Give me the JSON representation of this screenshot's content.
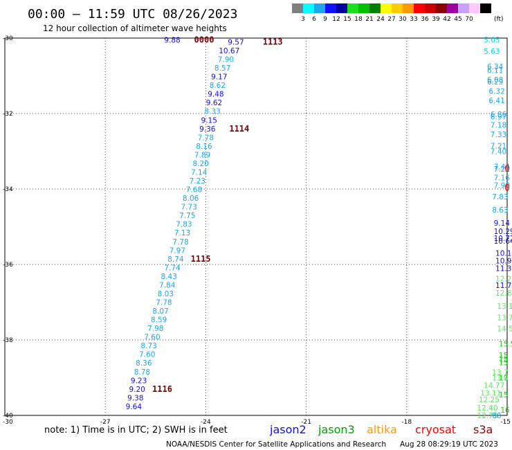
{
  "header": {
    "title": "00:00 — 11:59 UTC 08/26/2023",
    "subtitle": "12 hour collection of altimeter wave heights"
  },
  "colorbar": {
    "colors": [
      "#808080",
      "#00ffff",
      "#1aa7ee",
      "#1010ff",
      "#0000a0",
      "#19e119",
      "#00c000",
      "#008000",
      "#ffff00",
      "#ffcc00",
      "#ff9900",
      "#ff0000",
      "#c80000",
      "#8c0000",
      "#a000a0",
      "#c8a0ff",
      "#ffc8ff",
      "#000000"
    ],
    "labels": [
      "3",
      "6",
      "9",
      "12",
      "15",
      "18",
      "21",
      "24",
      "27",
      "30",
      "33",
      "36",
      "39",
      "42",
      "45",
      "70"
    ],
    "unit": "(ft)"
  },
  "chart_data": {
    "type": "scatter",
    "title": "00:00 — 11:59 UTC 08/26/2023",
    "subtitle": "12 hour collection of altimeter wave heights",
    "xlim": [
      -30,
      -15
    ],
    "ylim": [
      -40,
      -30
    ],
    "xticks": [
      "-27",
      "-24",
      "-21",
      "-18",
      "-15"
    ],
    "yticks": [
      "-30",
      "-32",
      "-34",
      "-36",
      "-38",
      "-40"
    ],
    "x_corner_label": "-30",
    "grid": true,
    "units": "ft",
    "track_west": [
      {
        "lon": -25.0,
        "lat": -30.05,
        "v": "9.88"
      },
      {
        "lon": -23.1,
        "lat": -30.1,
        "v": "9.57"
      },
      {
        "lon": -23.3,
        "lat": -30.33,
        "v": "10.67"
      },
      {
        "lon": -23.4,
        "lat": -30.56,
        "v": "7.90"
      },
      {
        "lon": -23.5,
        "lat": -30.79,
        "v": "8.57"
      },
      {
        "lon": -23.6,
        "lat": -31.02,
        "v": "9.17"
      },
      {
        "lon": -23.65,
        "lat": -31.25,
        "v": "8.62"
      },
      {
        "lon": -23.7,
        "lat": -31.48,
        "v": "9.48"
      },
      {
        "lon": -23.75,
        "lat": -31.71,
        "v": "9.62"
      },
      {
        "lon": -23.8,
        "lat": -31.94,
        "v": "8.33"
      },
      {
        "lon": -23.9,
        "lat": -32.17,
        "v": "9.15"
      },
      {
        "lon": -23.95,
        "lat": -32.4,
        "v": "9.36"
      },
      {
        "lon": -24.0,
        "lat": -32.63,
        "v": "7.78"
      },
      {
        "lon": -24.05,
        "lat": -32.86,
        "v": "8.16"
      },
      {
        "lon": -24.1,
        "lat": -33.09,
        "v": "7.89"
      },
      {
        "lon": -24.15,
        "lat": -33.32,
        "v": "8.20"
      },
      {
        "lon": -24.2,
        "lat": -33.55,
        "v": "7.14"
      },
      {
        "lon": -24.25,
        "lat": -33.78,
        "v": "7.23"
      },
      {
        "lon": -24.35,
        "lat": -34.01,
        "v": "7.68"
      },
      {
        "lon": -24.45,
        "lat": -34.24,
        "v": "8.06"
      },
      {
        "lon": -24.5,
        "lat": -34.47,
        "v": "7.73"
      },
      {
        "lon": -24.55,
        "lat": -34.7,
        "v": "7.75"
      },
      {
        "lon": -24.65,
        "lat": -34.93,
        "v": "7.83"
      },
      {
        "lon": -24.7,
        "lat": -35.16,
        "v": "7.13"
      },
      {
        "lon": -24.75,
        "lat": -35.39,
        "v": "7.78"
      },
      {
        "lon": -24.85,
        "lat": -35.62,
        "v": "7.97"
      },
      {
        "lon": -24.9,
        "lat": -35.85,
        "v": "8.74"
      },
      {
        "lon": -25.0,
        "lat": -36.08,
        "v": "7.74"
      },
      {
        "lon": -25.1,
        "lat": -36.31,
        "v": "8.43"
      },
      {
        "lon": -25.15,
        "lat": -36.54,
        "v": "7.84"
      },
      {
        "lon": -25.2,
        "lat": -36.77,
        "v": "8.03"
      },
      {
        "lon": -25.25,
        "lat": -37.0,
        "v": "7.78"
      },
      {
        "lon": -25.35,
        "lat": -37.23,
        "v": "8.07"
      },
      {
        "lon": -25.4,
        "lat": -37.46,
        "v": "8.59"
      },
      {
        "lon": -25.5,
        "lat": -37.69,
        "v": "7.98"
      },
      {
        "lon": -25.6,
        "lat": -37.92,
        "v": "7.60"
      },
      {
        "lon": -25.7,
        "lat": -38.15,
        "v": "8.73"
      },
      {
        "lon": -25.75,
        "lat": -38.38,
        "v": "7.60"
      },
      {
        "lon": -25.85,
        "lat": -38.61,
        "v": "8.36"
      },
      {
        "lon": -25.9,
        "lat": -38.84,
        "v": "8.78"
      },
      {
        "lon": -26.0,
        "lat": -39.07,
        "v": "9.23"
      },
      {
        "lon": -26.05,
        "lat": -39.3,
        "v": "9.20"
      },
      {
        "lon": -26.1,
        "lat": -39.53,
        "v": "9.38"
      },
      {
        "lon": -26.15,
        "lat": -39.76,
        "v": "9.64"
      }
    ],
    "track_east": [
      {
        "lon": -15.7,
        "lat": -30.05,
        "v": "5.05"
      },
      {
        "lon": -15.7,
        "lat": -30.35,
        "v": "5.63"
      },
      {
        "lon": -15.6,
        "lat": -30.75,
        "v": "6.34"
      },
      {
        "lon": -15.6,
        "lat": -30.85,
        "v": "6.11"
      },
      {
        "lon": -15.6,
        "lat": -31.1,
        "v": "6.08"
      },
      {
        "lon": -15.6,
        "lat": -31.16,
        "v": "6.29"
      },
      {
        "lon": -15.55,
        "lat": -31.4,
        "v": "6.32"
      },
      {
        "lon": -15.55,
        "lat": -31.65,
        "v": "6.41"
      },
      {
        "lon": -15.5,
        "lat": -32.02,
        "v": "6.86"
      },
      {
        "lon": -15.5,
        "lat": -32.08,
        "v": "6.97"
      },
      {
        "lon": -15.5,
        "lat": -32.3,
        "v": "7.18"
      },
      {
        "lon": -15.5,
        "lat": -32.55,
        "v": "7.33"
      },
      {
        "lon": -15.5,
        "lat": -32.85,
        "v": "7.21"
      },
      {
        "lon": -15.5,
        "lat": -33.0,
        "v": "7.40"
      },
      {
        "lon": -15.4,
        "lat": -33.4,
        "v": "7.44"
      },
      {
        "lon": -15.4,
        "lat": -33.47,
        "v": "7.22"
      },
      {
        "lon": -15.4,
        "lat": -33.7,
        "v": "7.16"
      },
      {
        "lon": -15.4,
        "lat": -33.9,
        "v": "7.90"
      },
      {
        "lon": -15.45,
        "lat": -34.2,
        "v": "7.83"
      },
      {
        "lon": -15.45,
        "lat": -34.55,
        "v": "8.63"
      },
      {
        "lon": -15.4,
        "lat": -34.9,
        "v": "9.14"
      },
      {
        "lon": -15.4,
        "lat": -35.12,
        "v": "10.29"
      },
      {
        "lon": -15.4,
        "lat": -35.3,
        "v": "10.72"
      },
      {
        "lon": -15.4,
        "lat": -35.38,
        "v": "10.64"
      },
      {
        "lon": -15.35,
        "lat": -35.7,
        "v": "10.14"
      },
      {
        "lon": -15.35,
        "lat": -35.9,
        "v": "10.97"
      },
      {
        "lon": -15.35,
        "lat": -36.1,
        "v": "11.30"
      },
      {
        "lon": -15.35,
        "lat": -36.38,
        "v": "12.22"
      },
      {
        "lon": -15.35,
        "lat": -36.55,
        "v": "11.74"
      },
      {
        "lon": -15.35,
        "lat": -36.75,
        "v": "12.83"
      },
      {
        "lon": -15.3,
        "lat": -37.1,
        "v": "13.14"
      },
      {
        "lon": -15.3,
        "lat": -37.4,
        "v": "13.7"
      },
      {
        "lon": -15.3,
        "lat": -37.7,
        "v": "14.5"
      },
      {
        "lon": -15.25,
        "lat": -38.1,
        "v": "15.5"
      },
      {
        "lon": -15.25,
        "lat": -38.4,
        "v": "15"
      },
      {
        "lon": -15.25,
        "lat": -38.5,
        "v": "15"
      },
      {
        "lon": -15.25,
        "lat": -38.6,
        "v": "15"
      },
      {
        "lon": -15.45,
        "lat": -38.85,
        "v": "13.7"
      },
      {
        "lon": -15.45,
        "lat": -39.0,
        "v": "13.0"
      },
      {
        "lon": -15.25,
        "lat": -39.0,
        "v": "17"
      },
      {
        "lon": -15.7,
        "lat": -39.2,
        "v": "14.77"
      },
      {
        "lon": -15.8,
        "lat": -39.4,
        "v": "13.11"
      },
      {
        "lon": -15.25,
        "lat": -39.45,
        "v": "15"
      },
      {
        "lon": -15.85,
        "lat": -39.58,
        "v": "12.25"
      },
      {
        "lon": -15.9,
        "lat": -39.8,
        "v": "12.40"
      },
      {
        "lon": -15.2,
        "lat": -39.85,
        "v": "16"
      },
      {
        "lon": -15.9,
        "lat": -40.0,
        "v": "12.75"
      },
      {
        "lon": -15.45,
        "lat": -40.0,
        "v": "08"
      }
    ],
    "time_labels": [
      {
        "lon": -24.05,
        "lat": -30.05,
        "t": "0000"
      },
      {
        "lon": -22.0,
        "lat": -30.1,
        "t": "1113"
      },
      {
        "lon": -23.0,
        "lat": -32.4,
        "t": "1114"
      },
      {
        "lon": -24.15,
        "lat": -35.85,
        "t": "1115"
      },
      {
        "lon": -25.3,
        "lat": -39.3,
        "t": "1116"
      }
    ],
    "edge_marks": [
      {
        "lon": -15.08,
        "lat": -33.45,
        "t": "0"
      },
      {
        "lon": -15.08,
        "lat": -33.95,
        "t": "0"
      }
    ]
  },
  "footer": {
    "note": "note:  1) Time is in UTC;  2) SWH is in feet",
    "satellites": [
      {
        "name": "jason2",
        "color": "#1010e0"
      },
      {
        "name": "jason3",
        "color": "#00a000"
      },
      {
        "name": "altika",
        "color": "#ff9900"
      },
      {
        "name": "cryosat",
        "color": "#ff0000"
      },
      {
        "name": "s3a",
        "color": "#a00000"
      }
    ],
    "credit": "NOAA/NESDIS Center for Satellite Applications and Research",
    "timestamp": "Aug 28 08:29:19 UTC 2023"
  }
}
